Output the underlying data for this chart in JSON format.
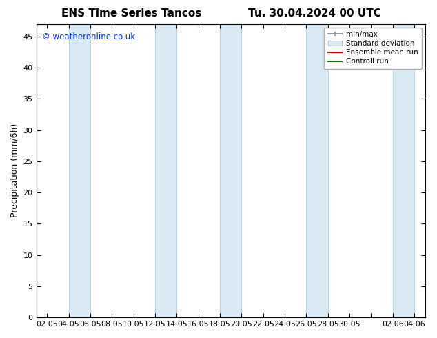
{
  "title_left": "ENS Time Series Tancos",
  "title_right": "Tu. 30.04.2024 00 UTC",
  "ylabel": "Precipitation (mm/6h)",
  "watermark": "© weatheronline.co.uk",
  "watermark_color": "#0033cc",
  "ylim": [
    0,
    47
  ],
  "yticks": [
    0,
    5,
    10,
    15,
    20,
    25,
    30,
    35,
    40,
    45
  ],
  "background_color": "#ffffff",
  "plot_bg_color": "#ffffff",
  "band_color": "#daeaf5",
  "band_edge_color": "#b8d4e8",
  "xtick_labels": [
    "02.05",
    "04.05",
    "06.05",
    "08.05",
    "10.05",
    "12.05",
    "14.05",
    "16.05",
    "18.05",
    "20.05",
    "22.05",
    "24.05",
    "26.05",
    "28.05",
    "30.05",
    "",
    "02.06",
    "04.06"
  ],
  "legend_labels": [
    "min/max",
    "Standard deviation",
    "Ensemble mean run",
    "Controll run"
  ],
  "title_fontsize": 11,
  "label_fontsize": 9,
  "tick_fontsize": 8,
  "band_ranges": [
    [
      1,
      2
    ],
    [
      5,
      6
    ],
    [
      8,
      9
    ],
    [
      12,
      13
    ],
    [
      16,
      17
    ]
  ]
}
